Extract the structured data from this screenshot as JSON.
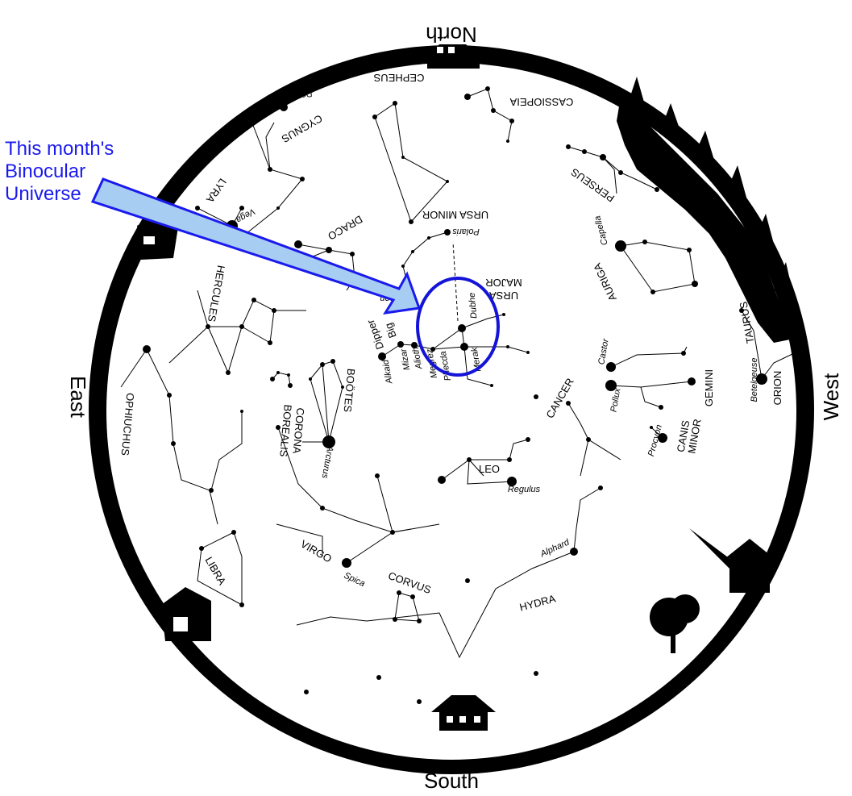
{
  "directions": {
    "north": "North",
    "south": "South",
    "east": "East",
    "west": "West"
  },
  "callout": {
    "line1": "This month's",
    "line2": "Binocular",
    "line3": "Universe"
  },
  "constellations": {
    "cepheus": "CEPHEUS",
    "cassiopeia": "CASSIOPEIA",
    "cygnus": "CYGNUS",
    "perseus": "PERSEUS",
    "lyra": "LYRA",
    "draco": "DRACO",
    "ursa_minor": "URSA MINOR",
    "ursa_major_1": "URSA",
    "ursa_major_2": "MAJOR",
    "auriga": "AURIGA",
    "hercules": "HERCULES",
    "taurus": "TAURUS",
    "big_dipper_1": "Big",
    "big_dipper_2": "Dipper",
    "bootes": "BOÖTES",
    "corona_1": "CORONA",
    "corona_2": "BOREALIS",
    "ophiuchus": "OPHIUCHUS",
    "cancer": "CANCER",
    "gemini": "GEMINI",
    "orion": "ORION",
    "canis_minor_1": "CANIS",
    "canis_minor_2": "MINOR",
    "leo": "LEO",
    "virgo": "VIRGO",
    "libra": "LIBRA",
    "corvus": "CORVUS",
    "hydra": "HYDRA"
  },
  "stars": {
    "deneb": "Deneb",
    "vega": "Vega",
    "polaris": "Polaris",
    "capella": "Capella",
    "thuban": "Thuban",
    "dubhe": "Dubhe",
    "merak": "Merak",
    "phecda": "Phecda",
    "megrez": "Megrez",
    "alioth": "Alioth",
    "mizar": "Mizar",
    "alkaid": "Alkaid",
    "castor": "Castor",
    "pollux": "Pollux",
    "betelgeuse": "Betelgeuse",
    "procyon": "Procyon",
    "arcturus": "Arcturus",
    "regulus": "Regulus",
    "alphard": "Alphard",
    "spica": "Spica"
  },
  "colors": {
    "callout_text": "#1a1aee",
    "callout_arrow": "#a8cdf2",
    "ellipse": "#1414d8",
    "horizon": "#000000"
  }
}
